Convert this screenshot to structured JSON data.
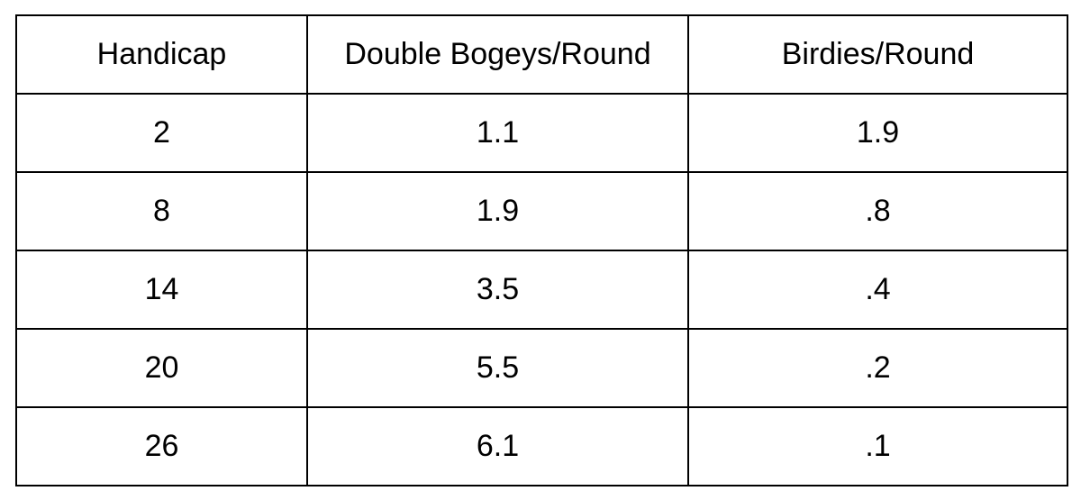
{
  "table": {
    "headers": [
      "Handicap",
      "Double Bogeys/Round",
      "Birdies/Round"
    ],
    "rows": [
      [
        "2",
        "1.1",
        "1.9"
      ],
      [
        "8",
        "1.9",
        ".8"
      ],
      [
        "14",
        "3.5",
        ".4"
      ],
      [
        "20",
        "5.5",
        ".2"
      ],
      [
        "26",
        "6.1",
        ".1"
      ]
    ]
  }
}
